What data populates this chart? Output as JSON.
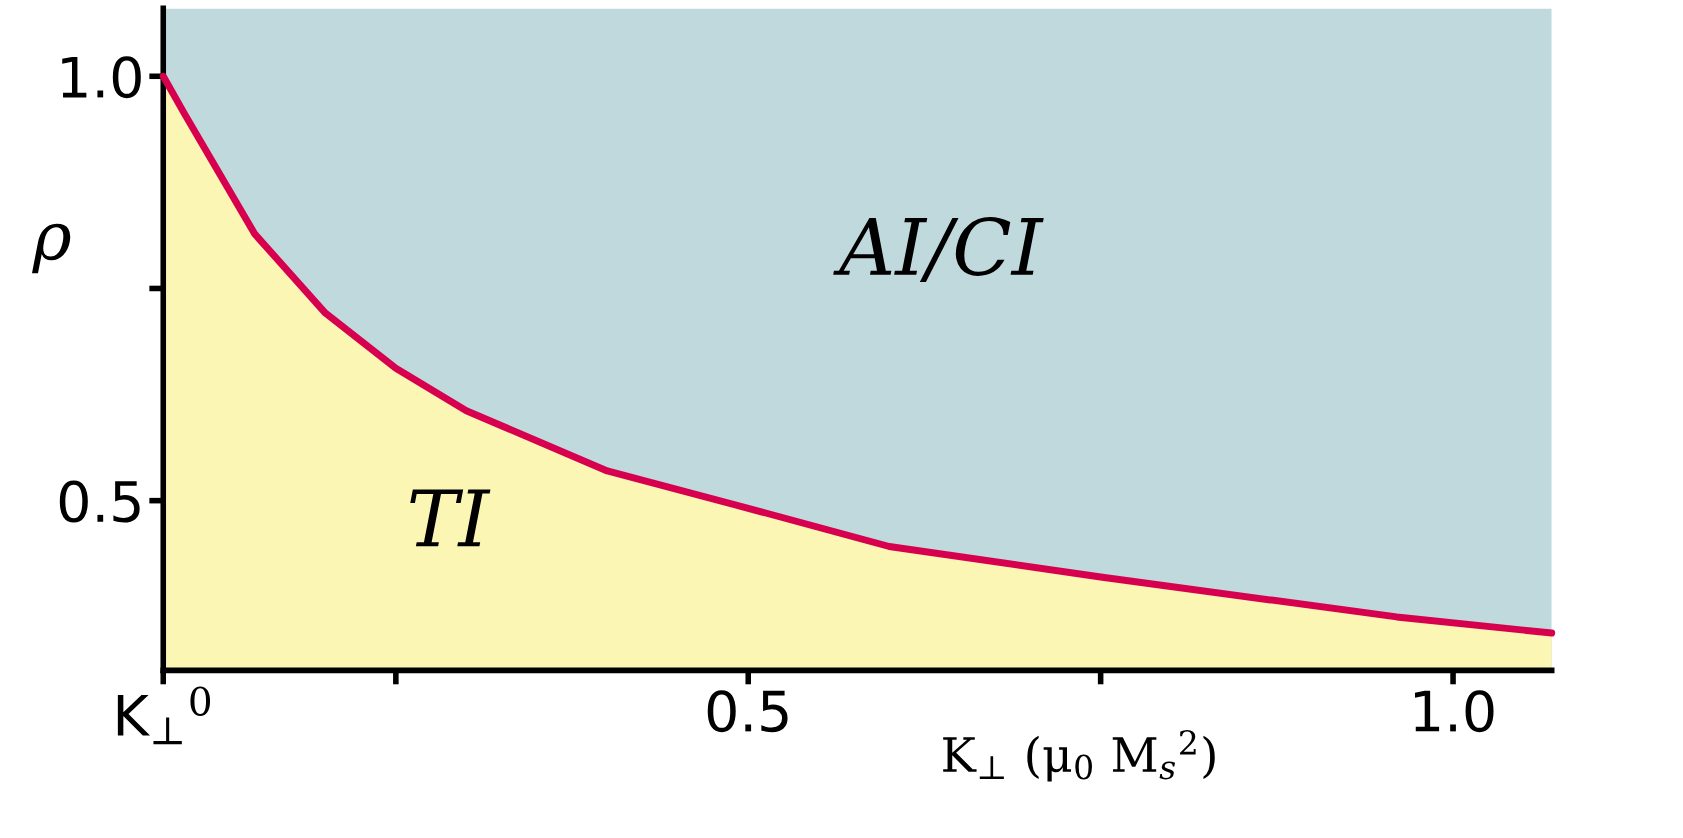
{
  "chart_data": {
    "type": "area",
    "xlabel": "K$_{⊥}$ (μ$_{0}$ M$_{s}$$^{2}$)",
    "ylabel": "ρ",
    "x": [
      0.085,
      0.1,
      0.15,
      0.2,
      0.25,
      0.3,
      0.4,
      0.5,
      0.6,
      0.75,
      0.96,
      1.07
    ],
    "series": [
      {
        "color": "#fbf6b4",
        "values": [
          1.0,
          0.956,
          0.814,
          0.721,
          0.656,
          0.606,
          0.535,
          0.491,
          0.446,
          0.41,
          0.363,
          0.344
        ]
      },
      {
        "type": "line",
        "color": "#d6004f",
        "values": [
          1.0,
          0.956,
          0.814,
          0.721,
          0.656,
          0.606,
          0.535,
          0.491,
          0.446,
          0.41,
          0.363,
          0.344
        ]
      }
    ],
    "bands": [
      {
        "axis": "y",
        "from": 0.3,
        "to": 1.08,
        "color": "#bfd9dc"
      }
    ],
    "annotations": [
      "AI/CI",
      "TI"
    ],
    "xlim": [
      0.085,
      1.07
    ],
    "ylim": [
      0.3,
      1.08
    ],
    "xticks": [
      {
        "value": 0.085,
        "label": "K$_{⊥}$$^{0}$"
      },
      {
        "value": 0.25,
        "label": null
      },
      0.5,
      {
        "value": 0.75,
        "label": null
      },
      {
        "value": 1.0,
        "label": "1.0"
      }
    ],
    "yticks": [
      0.5,
      {
        "value": 0.75,
        "label": null
      },
      {
        "value": 1.0,
        "label": "1.0"
      }
    ],
    "grid": false
  }
}
